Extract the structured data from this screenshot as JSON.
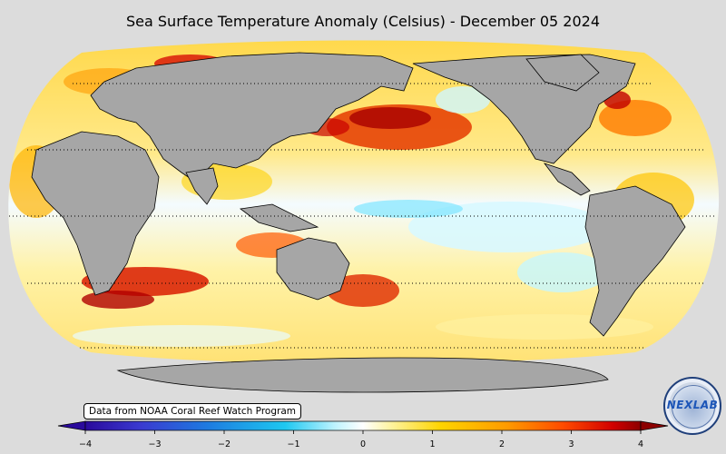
{
  "title": "Sea Surface Temperature Anomaly (Celsius) - December 05 2024",
  "source_note": "Data from NOAA Coral Reef Watch Program",
  "logo_text": "NEXLAB",
  "colorbar": {
    "ticks": [
      "−4",
      "−3",
      "−2",
      "−1",
      "0",
      "1",
      "2",
      "3",
      "4"
    ],
    "min": -4,
    "max": 4,
    "colors": [
      "#2a0a9c",
      "#3a3ad0",
      "#1e7be0",
      "#1ec8f0",
      "#bff3ff",
      "#ffffff",
      "#fff3a0",
      "#ffd400",
      "#ff9a00",
      "#ff4b00",
      "#d10000",
      "#8c0000"
    ]
  },
  "map": {
    "projection": "Robinson",
    "land_color": "#a6a6a6",
    "background": "#dcdcdc",
    "graticule": "dotted parallels"
  }
}
